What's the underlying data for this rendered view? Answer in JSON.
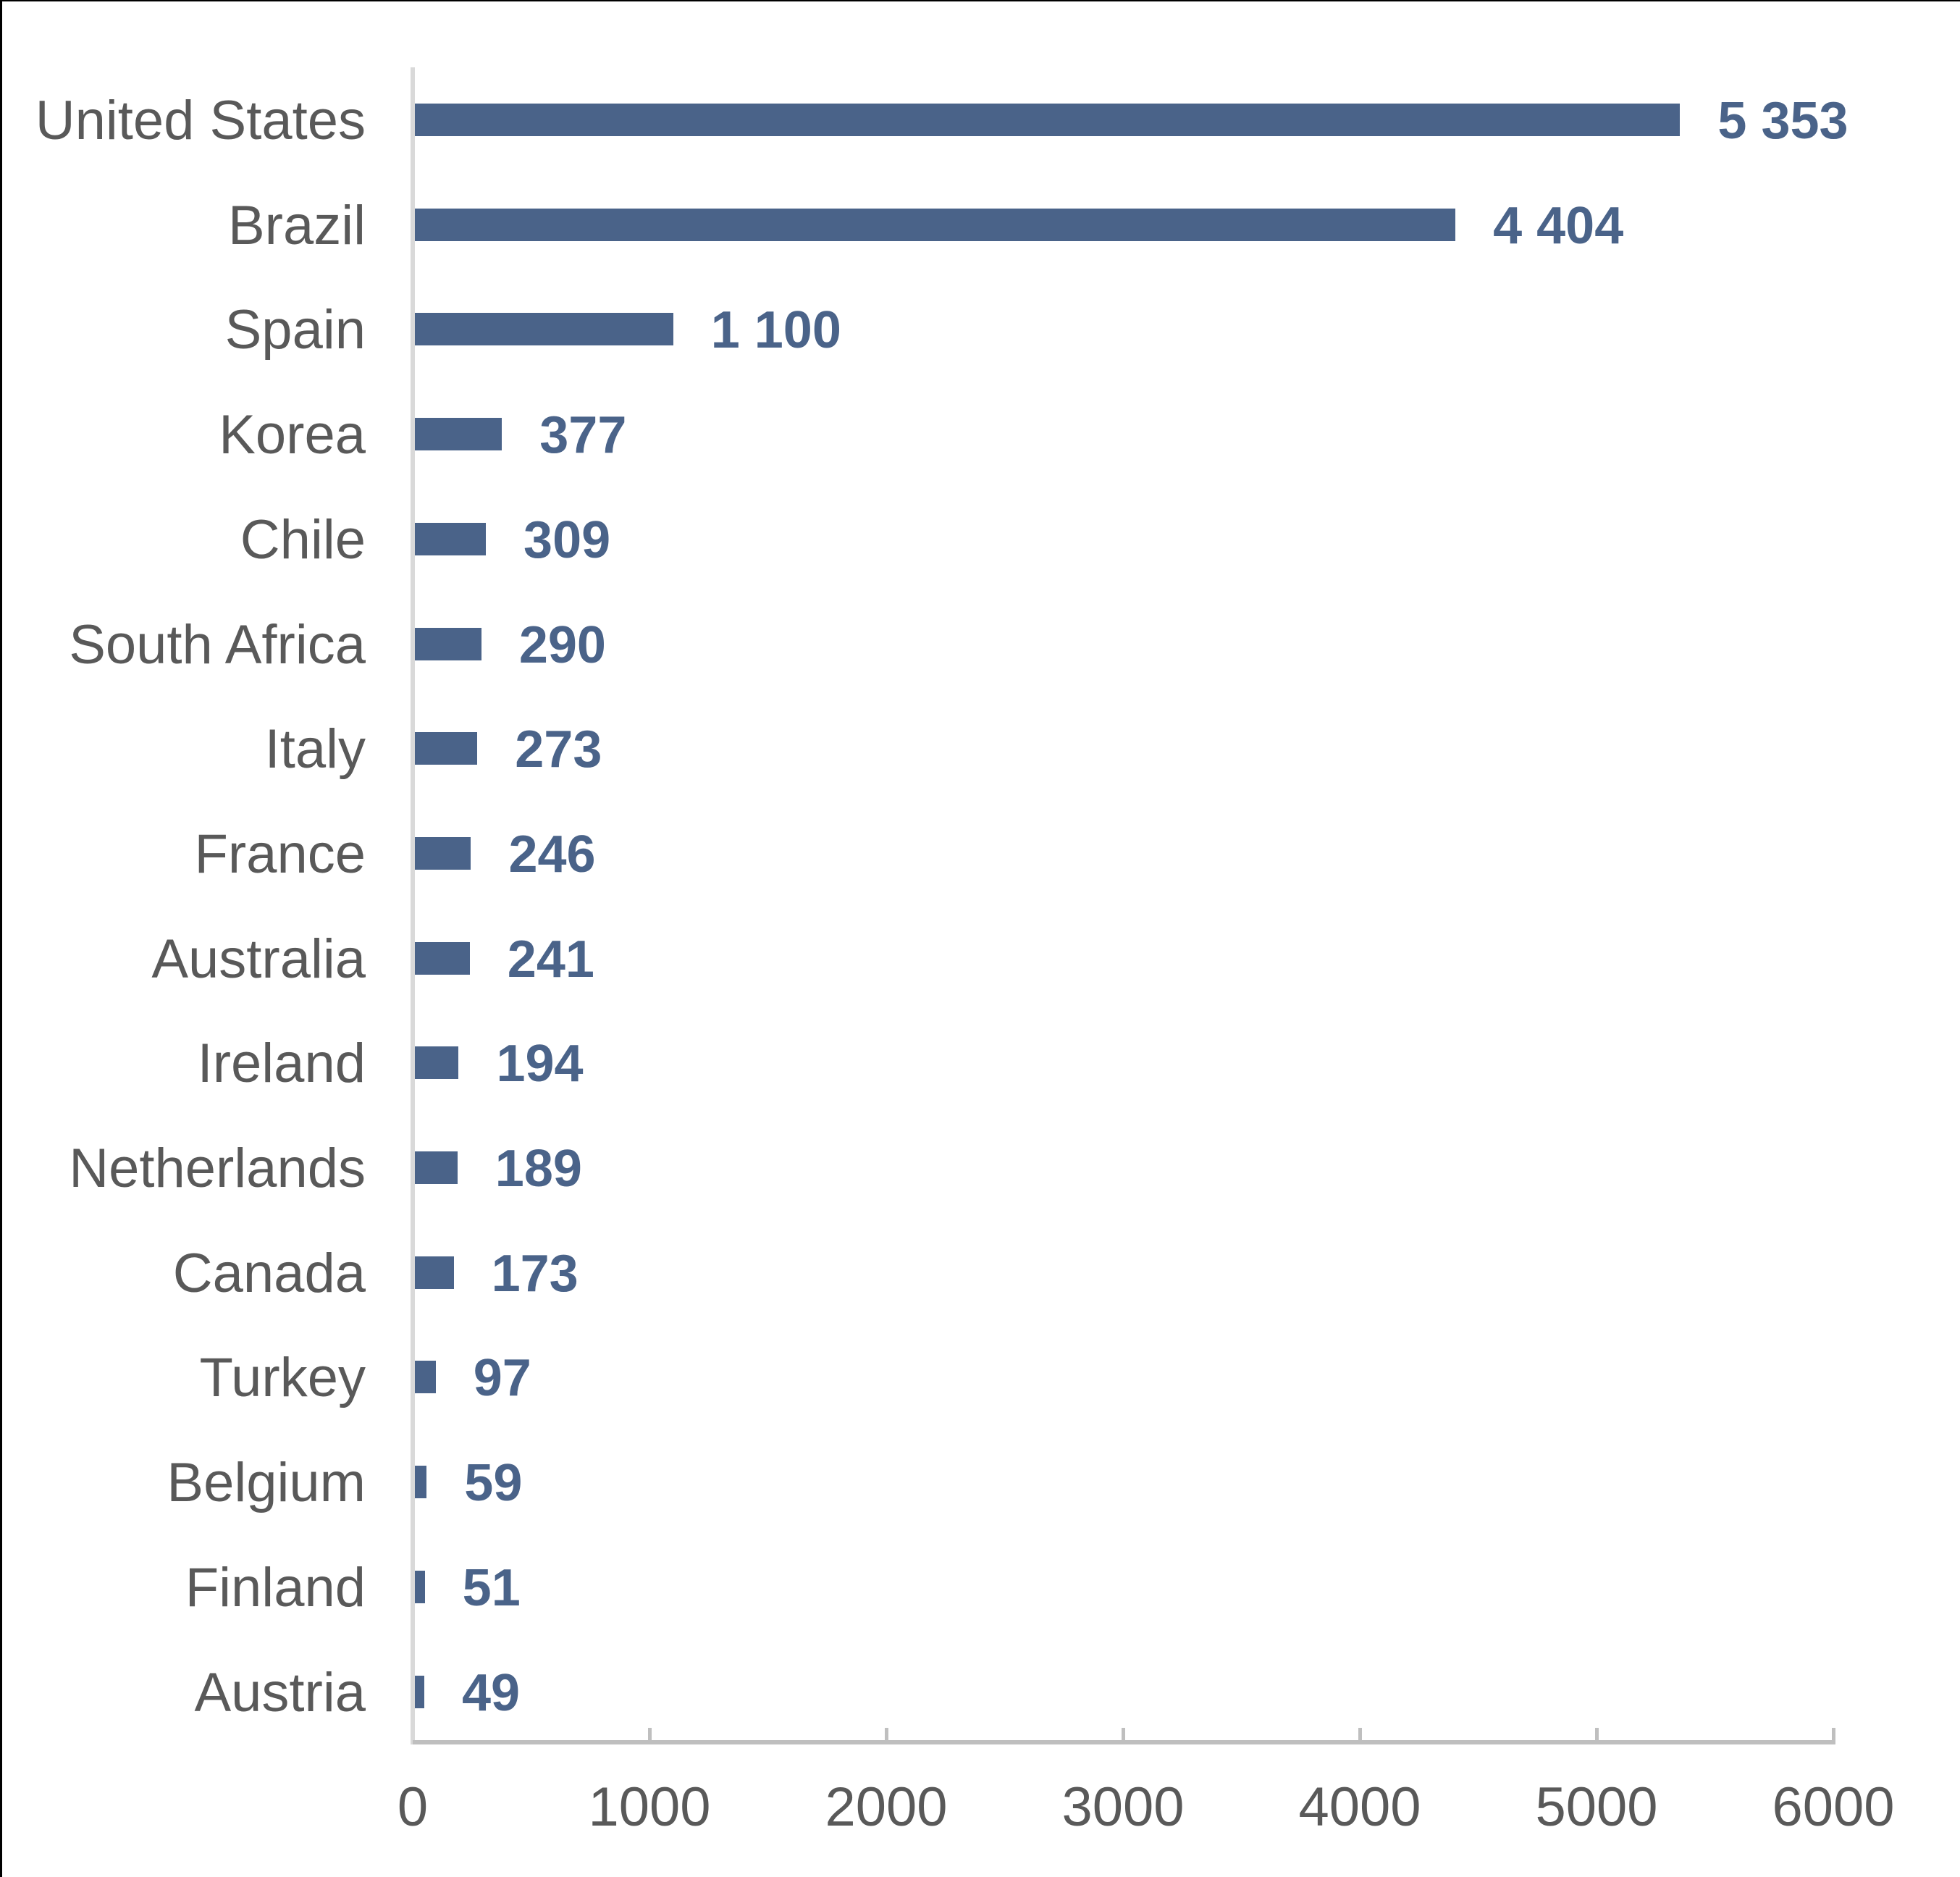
{
  "chart_data": {
    "type": "bar",
    "orientation": "horizontal",
    "title": "",
    "xlabel": "",
    "ylabel": "",
    "categories": [
      "United States",
      "Brazil",
      "Spain",
      "Korea",
      "Chile",
      "South Africa",
      "Italy",
      "France",
      "Australia",
      "Ireland",
      "Netherlands",
      "Canada",
      "Turkey",
      "Belgium",
      "Finland",
      "Austria"
    ],
    "values": [
      5353,
      4404,
      1100,
      377,
      309,
      290,
      273,
      246,
      241,
      194,
      189,
      173,
      97,
      59,
      51,
      49
    ],
    "value_labels": [
      "5 353",
      "4 404",
      "1 100",
      "377",
      "309",
      "290",
      "273",
      "246",
      "241",
      "194",
      "189",
      "173",
      "97",
      "59",
      "51",
      "49"
    ],
    "xlim": [
      0,
      6000
    ],
    "x_ticks": [
      0,
      1000,
      2000,
      3000,
      4000,
      5000,
      6000
    ],
    "x_tick_labels": [
      "0",
      "1000",
      "2000",
      "3000",
      "4000",
      "5000",
      "6000"
    ],
    "grid": false,
    "legend": null
  },
  "colors": {
    "bar": "#4a6389",
    "value_label": "#4a6389",
    "category_label": "#595959",
    "axis": "#bfbfbf"
  }
}
